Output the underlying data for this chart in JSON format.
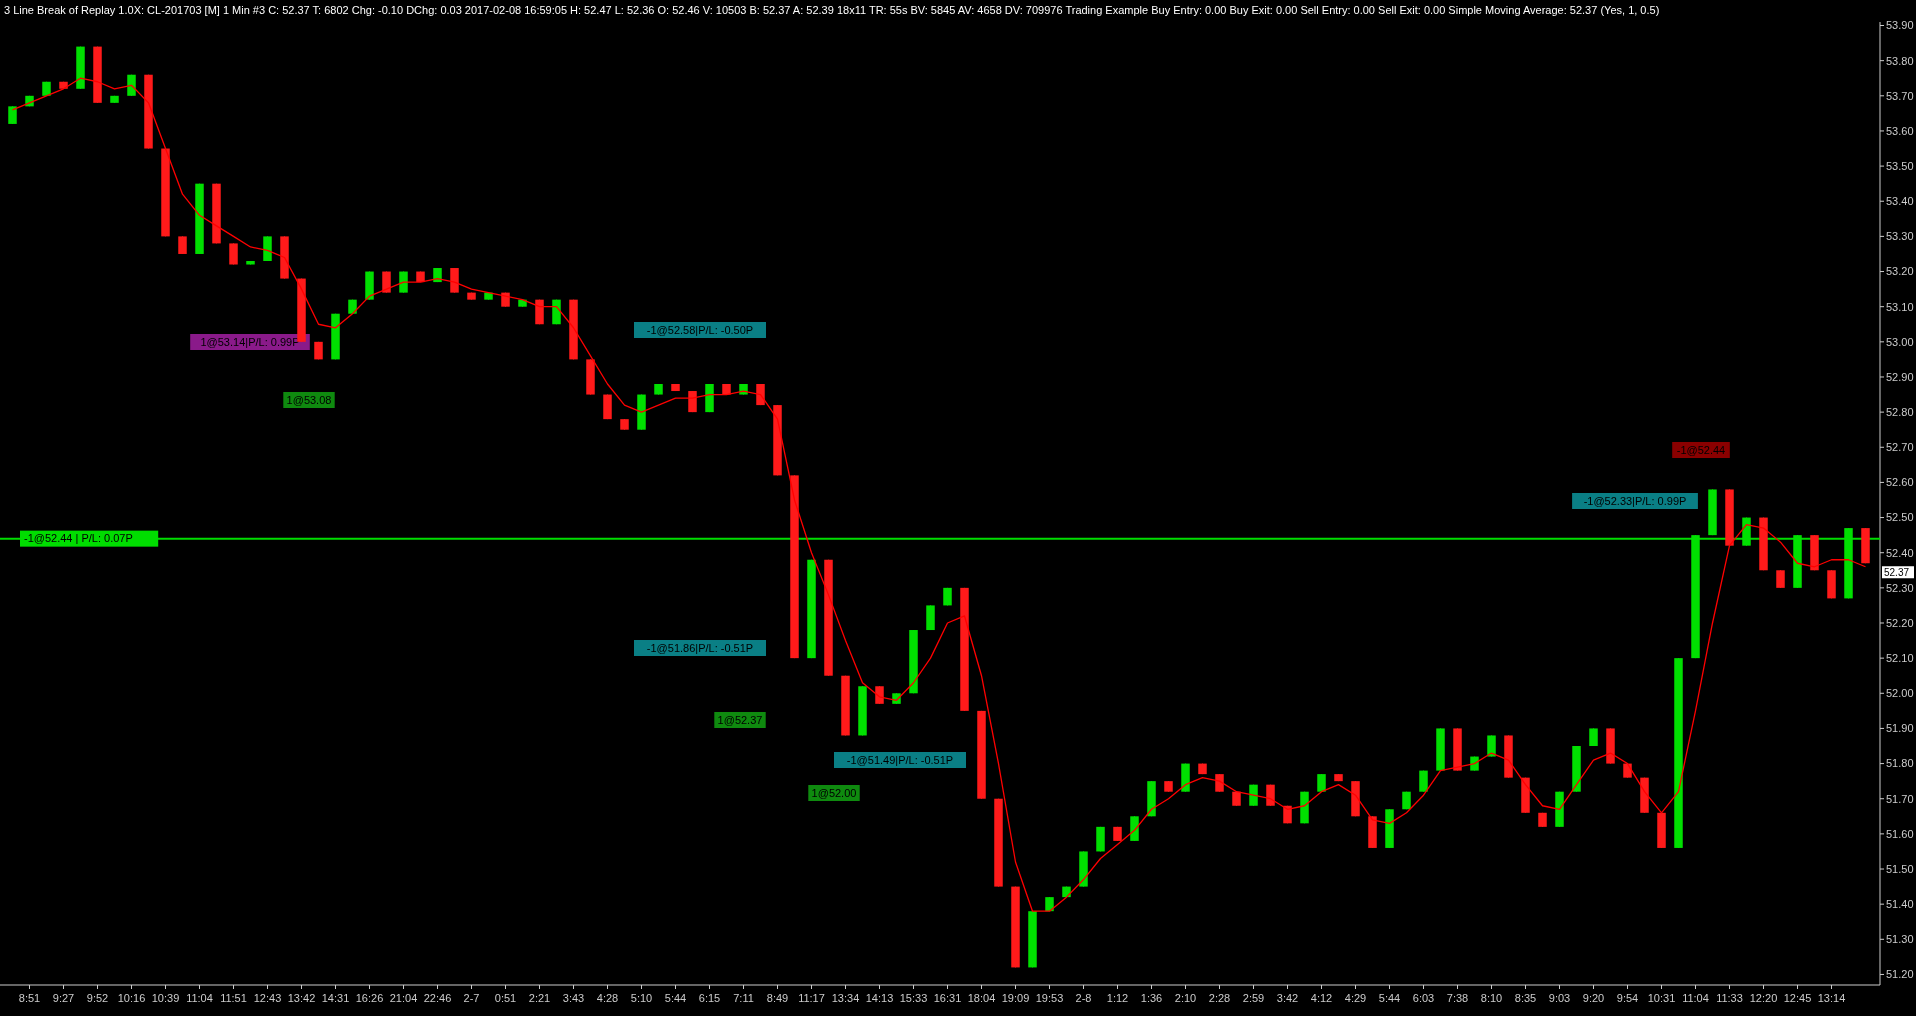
{
  "chart_data": {
    "type": "candlestick",
    "title": "3 Line Break of Replay 1.0X: CL-201703 [M]  1 Min  #3  C: 52.37  T: 6802  Chg: -0.10  DChg: 0.03  2017-02-08 16:59:05  H: 52.47  L: 52.36  O: 52.46  V: 10503  B: 52.37  A: 52.39  18x11  TR: 55s  BV: 5845  AV: 4658  DV: 709976  Trading Example  Buy Entry: 0.00  Buy Exit: 0.00  Sell Entry: 0.00  Sell Exit: 0.00  Simple Moving Average: 52.37  (Yes, 1, 0.5)",
    "categories": [
      null,
      "8:51",
      null,
      "9:27",
      null,
      "9:52",
      null,
      "10:16",
      null,
      "10:39",
      null,
      "11:04",
      null,
      "11:51",
      null,
      "12:43",
      null,
      "13:42",
      null,
      "14:31",
      null,
      "16:26",
      null,
      "21:04",
      null,
      "22:46",
      null,
      "2-7",
      null,
      "0:51",
      null,
      "2:21",
      null,
      "3:43",
      null,
      "4:28",
      null,
      "5:10",
      null,
      "5:44",
      null,
      "6:15",
      null,
      "7:11",
      null,
      "8:49",
      null,
      "11:17",
      null,
      "13:34",
      null,
      "14:13",
      null,
      "15:33",
      null,
      "16:31",
      null,
      "18:04",
      null,
      "19:09",
      null,
      "19:53",
      null,
      "2-8",
      null,
      "1:12",
      null,
      "1:36",
      null,
      "2:10",
      null,
      "2:28",
      null,
      "2:59",
      null,
      "3:42",
      null,
      "4:12",
      null,
      "4:29",
      null,
      "5:44",
      null,
      "6:03",
      null,
      "7:38",
      null,
      "8:10",
      null,
      "8:35",
      null,
      "9:03",
      null,
      "9:20",
      null,
      "9:54",
      null,
      "10:31",
      null,
      "11:04",
      null,
      "11:33",
      null,
      "12:20",
      null,
      "12:45",
      null,
      "13:14",
      null,
      null
    ],
    "ohlc": [
      [
        53.62,
        53.67,
        53.62,
        53.67
      ],
      [
        53.67,
        53.7,
        53.67,
        53.7
      ],
      [
        53.7,
        53.74,
        53.7,
        53.74
      ],
      [
        53.74,
        53.74,
        53.72,
        53.72
      ],
      [
        53.72,
        53.84,
        53.72,
        53.84
      ],
      [
        53.84,
        53.84,
        53.68,
        53.68
      ],
      [
        53.68,
        53.7,
        53.68,
        53.7
      ],
      [
        53.7,
        53.76,
        53.7,
        53.76
      ],
      [
        53.76,
        53.76,
        53.55,
        53.55
      ],
      [
        53.55,
        53.55,
        53.3,
        53.3
      ],
      [
        53.3,
        53.3,
        53.25,
        53.25
      ],
      [
        53.25,
        53.45,
        53.25,
        53.45
      ],
      [
        53.45,
        53.45,
        53.28,
        53.28
      ],
      [
        53.28,
        53.28,
        53.22,
        53.22
      ],
      [
        53.22,
        53.23,
        53.22,
        53.23
      ],
      [
        53.23,
        53.3,
        53.23,
        53.3
      ],
      [
        53.3,
        53.3,
        53.18,
        53.18
      ],
      [
        53.18,
        53.18,
        53.0,
        53.0
      ],
      [
        53.0,
        53.0,
        52.95,
        52.95
      ],
      [
        52.95,
        53.08,
        52.95,
        53.08
      ],
      [
        53.08,
        53.12,
        53.08,
        53.12
      ],
      [
        53.12,
        53.2,
        53.12,
        53.2
      ],
      [
        53.2,
        53.2,
        53.14,
        53.14
      ],
      [
        53.14,
        53.2,
        53.14,
        53.2
      ],
      [
        53.2,
        53.2,
        53.17,
        53.17
      ],
      [
        53.17,
        53.21,
        53.17,
        53.21
      ],
      [
        53.21,
        53.21,
        53.14,
        53.14
      ],
      [
        53.14,
        53.14,
        53.12,
        53.12
      ],
      [
        53.12,
        53.14,
        53.12,
        53.14
      ],
      [
        53.14,
        53.14,
        53.1,
        53.1
      ],
      [
        53.1,
        53.12,
        53.1,
        53.12
      ],
      [
        53.12,
        53.12,
        53.05,
        53.05
      ],
      [
        53.05,
        53.12,
        53.05,
        53.12
      ],
      [
        53.12,
        53.12,
        52.95,
        52.95
      ],
      [
        52.95,
        52.95,
        52.85,
        52.85
      ],
      [
        52.85,
        52.85,
        52.78,
        52.78
      ],
      [
        52.78,
        52.78,
        52.75,
        52.75
      ],
      [
        52.75,
        52.85,
        52.75,
        52.85
      ],
      [
        52.85,
        52.88,
        52.85,
        52.88
      ],
      [
        52.88,
        52.88,
        52.86,
        52.86
      ],
      [
        52.86,
        52.86,
        52.8,
        52.8
      ],
      [
        52.8,
        52.88,
        52.8,
        52.88
      ],
      [
        52.88,
        52.88,
        52.85,
        52.85
      ],
      [
        52.85,
        52.88,
        52.85,
        52.88
      ],
      [
        52.88,
        52.88,
        52.82,
        52.82
      ],
      [
        52.82,
        52.82,
        52.62,
        52.62
      ],
      [
        52.62,
        52.62,
        52.1,
        52.1
      ],
      [
        52.1,
        52.38,
        52.1,
        52.38
      ],
      [
        52.38,
        52.38,
        52.05,
        52.05
      ],
      [
        52.05,
        52.05,
        51.88,
        51.88
      ],
      [
        51.88,
        52.02,
        51.88,
        52.02
      ],
      [
        52.02,
        52.02,
        51.97,
        51.97
      ],
      [
        51.97,
        52.0,
        51.97,
        52.0
      ],
      [
        52.0,
        52.18,
        52.0,
        52.18
      ],
      [
        52.18,
        52.25,
        52.18,
        52.25
      ],
      [
        52.25,
        52.3,
        52.25,
        52.3
      ],
      [
        52.3,
        52.3,
        51.95,
        51.95
      ],
      [
        51.95,
        51.95,
        51.7,
        51.7
      ],
      [
        51.7,
        51.7,
        51.45,
        51.45
      ],
      [
        51.45,
        51.45,
        51.22,
        51.22
      ],
      [
        51.22,
        51.38,
        51.22,
        51.38
      ],
      [
        51.38,
        51.42,
        51.38,
        51.42
      ],
      [
        51.42,
        51.45,
        51.42,
        51.45
      ],
      [
        51.45,
        51.55,
        51.45,
        51.55
      ],
      [
        51.55,
        51.62,
        51.55,
        51.62
      ],
      [
        51.62,
        51.62,
        51.58,
        51.58
      ],
      [
        51.58,
        51.65,
        51.58,
        51.65
      ],
      [
        51.65,
        51.75,
        51.65,
        51.75
      ],
      [
        51.75,
        51.75,
        51.72,
        51.72
      ],
      [
        51.72,
        51.8,
        51.72,
        51.8
      ],
      [
        51.8,
        51.8,
        51.77,
        51.77
      ],
      [
        51.77,
        51.77,
        51.72,
        51.72
      ],
      [
        51.72,
        51.72,
        51.68,
        51.68
      ],
      [
        51.68,
        51.74,
        51.68,
        51.74
      ],
      [
        51.74,
        51.74,
        51.68,
        51.68
      ],
      [
        51.68,
        51.68,
        51.63,
        51.63
      ],
      [
        51.63,
        51.72,
        51.63,
        51.72
      ],
      [
        51.72,
        51.77,
        51.72,
        51.77
      ],
      [
        51.77,
        51.77,
        51.75,
        51.75
      ],
      [
        51.75,
        51.75,
        51.65,
        51.65
      ],
      [
        51.65,
        51.65,
        51.56,
        51.56
      ],
      [
        51.56,
        51.67,
        51.56,
        51.67
      ],
      [
        51.67,
        51.72,
        51.67,
        51.72
      ],
      [
        51.72,
        51.78,
        51.72,
        51.78
      ],
      [
        51.78,
        51.9,
        51.78,
        51.9
      ],
      [
        51.9,
        51.9,
        51.78,
        51.78
      ],
      [
        51.78,
        51.82,
        51.78,
        51.82
      ],
      [
        51.82,
        51.88,
        51.82,
        51.88
      ],
      [
        51.88,
        51.88,
        51.76,
        51.76
      ],
      [
        51.76,
        51.76,
        51.66,
        51.66
      ],
      [
        51.66,
        51.66,
        51.62,
        51.62
      ],
      [
        51.62,
        51.72,
        51.62,
        51.72
      ],
      [
        51.72,
        51.85,
        51.72,
        51.85
      ],
      [
        51.85,
        51.9,
        51.85,
        51.9
      ],
      [
        51.9,
        51.9,
        51.8,
        51.8
      ],
      [
        51.8,
        51.8,
        51.76,
        51.76
      ],
      [
        51.76,
        51.76,
        51.66,
        51.66
      ],
      [
        51.66,
        51.66,
        51.56,
        51.56
      ],
      [
        51.56,
        52.1,
        51.56,
        52.1
      ],
      [
        52.1,
        52.45,
        52.1,
        52.45
      ],
      [
        52.45,
        52.58,
        52.45,
        52.58
      ],
      [
        52.58,
        52.58,
        52.42,
        52.42
      ],
      [
        52.42,
        52.5,
        52.42,
        52.5
      ],
      [
        52.5,
        52.5,
        52.35,
        52.35
      ],
      [
        52.35,
        52.35,
        52.3,
        52.3
      ],
      [
        52.3,
        52.45,
        52.3,
        52.45
      ],
      [
        52.45,
        52.45,
        52.35,
        52.35
      ],
      [
        52.35,
        52.35,
        52.27,
        52.27
      ],
      [
        52.27,
        52.47,
        52.27,
        52.47
      ],
      [
        52.47,
        52.47,
        52.37,
        52.37
      ]
    ],
    "series": [
      {
        "type": "line",
        "color": "#ff0000",
        "values": [
          53.66,
          53.68,
          53.7,
          53.72,
          53.75,
          53.74,
          53.72,
          53.73,
          53.68,
          53.55,
          53.42,
          53.36,
          53.33,
          53.3,
          53.27,
          53.26,
          53.24,
          53.15,
          53.05,
          53.04,
          53.08,
          53.13,
          53.15,
          53.17,
          53.17,
          53.18,
          53.17,
          53.15,
          53.14,
          53.13,
          53.12,
          53.1,
          53.1,
          53.04,
          52.96,
          52.88,
          52.82,
          52.8,
          52.82,
          52.84,
          52.84,
          52.85,
          52.85,
          52.86,
          52.85,
          52.78,
          52.55,
          52.4,
          52.28,
          52.15,
          52.03,
          51.99,
          51.98,
          52.03,
          52.1,
          52.2,
          52.22,
          52.05,
          51.8,
          51.52,
          51.38,
          51.38,
          51.42,
          51.47,
          51.53,
          51.57,
          51.61,
          51.67,
          51.7,
          51.74,
          51.76,
          51.75,
          51.72,
          51.71,
          51.7,
          51.67,
          51.68,
          51.72,
          51.74,
          51.71,
          51.64,
          51.63,
          51.66,
          51.71,
          51.78,
          51.79,
          51.8,
          51.83,
          51.81,
          51.74,
          51.68,
          51.67,
          51.74,
          51.81,
          51.83,
          51.8,
          51.72,
          51.66,
          51.72,
          51.95,
          52.2,
          52.42,
          52.48,
          52.47,
          52.43,
          52.37,
          52.36,
          52.38,
          52.38,
          52.36
        ]
      }
    ],
    "ylim": [
      51.17,
      53.91
    ],
    "yticks": [
      {
        "value": 51.2,
        "label": "51.20"
      },
      {
        "value": 51.3,
        "label": "51.30"
      },
      {
        "value": 51.4,
        "label": "51.40"
      },
      {
        "value": 51.5,
        "label": "51.50"
      },
      {
        "value": 51.6,
        "label": "51.60"
      },
      {
        "value": 51.7,
        "label": "51.70"
      },
      {
        "value": 51.8,
        "label": "51.80"
      },
      {
        "value": 51.9,
        "label": "51.90"
      },
      {
        "value": 52.0,
        "label": "52.00"
      },
      {
        "value": 52.1,
        "label": "52.10"
      },
      {
        "value": 52.2,
        "label": "52.20"
      },
      {
        "value": 52.3,
        "label": "52.30"
      },
      {
        "value": 52.4,
        "label": "52.40"
      },
      {
        "value": 52.5,
        "label": "52.50"
      },
      {
        "value": 52.6,
        "label": "52.60"
      },
      {
        "value": 52.7,
        "label": "52.70"
      },
      {
        "value": 52.8,
        "label": "52.80"
      },
      {
        "value": 52.9,
        "label": "52.90"
      },
      {
        "value": 53.0,
        "label": "53.00"
      },
      {
        "value": 53.1,
        "label": "53.10"
      },
      {
        "value": 53.2,
        "label": "53.20"
      },
      {
        "value": 53.3,
        "label": "53.30"
      },
      {
        "value": 53.4,
        "label": "53.40"
      },
      {
        "value": 53.5,
        "label": "53.50"
      },
      {
        "value": 53.6,
        "label": "53.60"
      },
      {
        "value": 53.7,
        "label": "53.70"
      },
      {
        "value": 53.8,
        "label": "53.80"
      },
      {
        "value": 53.9,
        "label": "53.90"
      }
    ],
    "ref_lines": [
      {
        "axis": "y",
        "value": 52.44,
        "label": "-1@52.44 | P/L: 0.07P",
        "color": "#00dd00"
      }
    ],
    "annotations": [
      "1@53.14|P/L: 0.99P",
      "1@53.08",
      "-1@52.58|P/L: -0.50P",
      "-1@51.86|P/L: -0.51P",
      "1@52.37",
      "-1@51.49|P/L: -0.51P",
      "1@52.00",
      "-1@52.33|P/L: 0.99P",
      "-1@52.44",
      "52.37"
    ]
  }
}
